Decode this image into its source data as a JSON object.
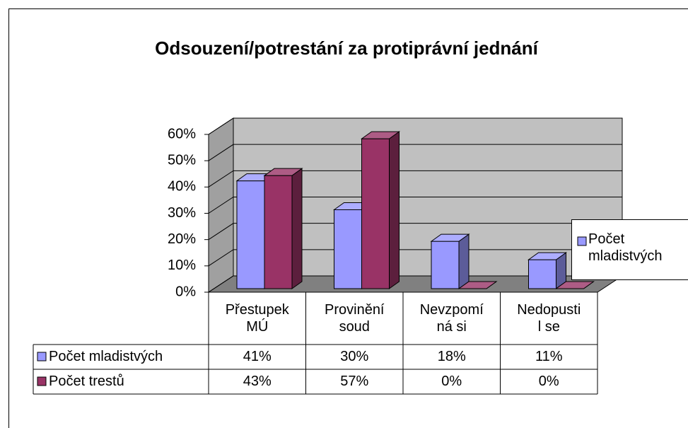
{
  "chart_data": {
    "type": "bar3d",
    "title": "Odsouzení/potrestání za protiprávní jednání",
    "categories": [
      "Přestupek MÚ",
      "Provinění soud",
      "Nevzpomíná si",
      "Nedopustil se"
    ],
    "series": [
      {
        "name": "Počet mladistvých",
        "color": "#9999ff",
        "values": [
          41,
          30,
          18,
          11
        ],
        "value_labels": [
          "41%",
          "30%",
          "18%",
          "11%"
        ]
      },
      {
        "name": "Počet trestů",
        "color": "#993366",
        "values": [
          43,
          57,
          0,
          0
        ],
        "value_labels": [
          "43%",
          "57%",
          "0%",
          "0%"
        ]
      }
    ],
    "ylim": [
      0,
      60
    ],
    "yticks": [
      {
        "value": 0,
        "label": "0%"
      },
      {
        "value": 10,
        "label": "10%"
      },
      {
        "value": 20,
        "label": "20%"
      },
      {
        "value": 30,
        "label": "30%"
      },
      {
        "value": 40,
        "label": "40%"
      },
      {
        "value": 50,
        "label": "50%"
      },
      {
        "value": 60,
        "label": "60%"
      }
    ],
    "grid": true,
    "legend": "right"
  }
}
